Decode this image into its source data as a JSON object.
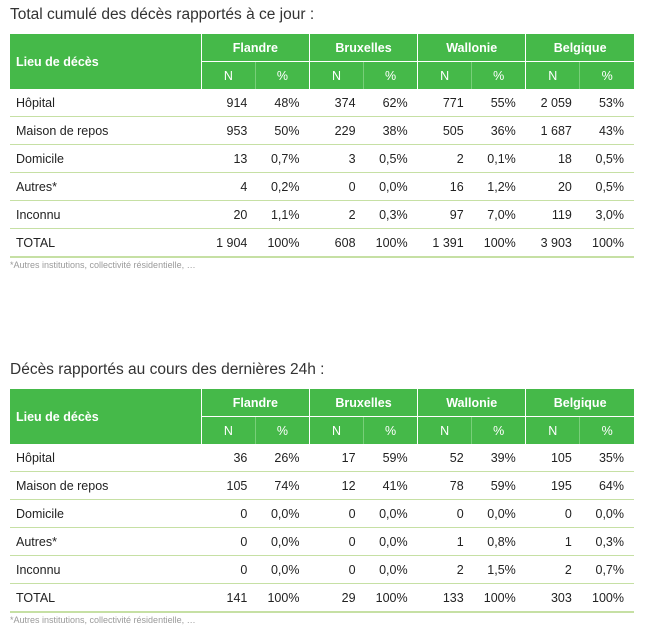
{
  "tables": [
    {
      "title": "Total cumulé des décès rapportés à ce jour :",
      "label_header": "Lieu de décès",
      "regions": [
        "Flandre",
        "Bruxelles",
        "Wallonie",
        "Belgique"
      ],
      "sub_headers": [
        "N",
        "%"
      ],
      "rows": [
        {
          "label": "Hôpital",
          "cells": [
            "914",
            "48%",
            "374",
            "62%",
            "771",
            "55%",
            "2 059",
            "53%"
          ]
        },
        {
          "label": "Maison de repos",
          "cells": [
            "953",
            "50%",
            "229",
            "38%",
            "505",
            "36%",
            "1 687",
            "43%"
          ]
        },
        {
          "label": "Domicile",
          "cells": [
            "13",
            "0,7%",
            "3",
            "0,5%",
            "2",
            "0,1%",
            "18",
            "0,5%"
          ]
        },
        {
          "label": "Autres*",
          "cells": [
            "4",
            "0,2%",
            "0",
            "0,0%",
            "16",
            "1,2%",
            "20",
            "0,5%"
          ]
        },
        {
          "label": "Inconnu",
          "cells": [
            "20",
            "1,1%",
            "2",
            "0,3%",
            "97",
            "7,0%",
            "119",
            "3,0%"
          ]
        },
        {
          "label": "TOTAL",
          "cells": [
            "1 904",
            "100%",
            "608",
            "100%",
            "1 391",
            "100%",
            "3 903",
            "100%"
          ]
        }
      ],
      "footnote": "*Autres institutions, collectivité résidentielle, …"
    },
    {
      "title": "Décès rapportés au cours des dernières 24h :",
      "label_header": "Lieu de décès",
      "regions": [
        "Flandre",
        "Bruxelles",
        "Wallonie",
        "Belgique"
      ],
      "sub_headers": [
        "N",
        "%"
      ],
      "rows": [
        {
          "label": "Hôpital",
          "cells": [
            "36",
            "26%",
            "17",
            "59%",
            "52",
            "39%",
            "105",
            "35%"
          ]
        },
        {
          "label": "Maison de repos",
          "cells": [
            "105",
            "74%",
            "12",
            "41%",
            "78",
            "59%",
            "195",
            "64%"
          ]
        },
        {
          "label": "Domicile",
          "cells": [
            "0",
            "0,0%",
            "0",
            "0,0%",
            "0",
            "0,0%",
            "0",
            "0,0%"
          ]
        },
        {
          "label": "Autres*",
          "cells": [
            "0",
            "0,0%",
            "0",
            "0,0%",
            "1",
            "0,8%",
            "1",
            "0,3%"
          ]
        },
        {
          "label": "Inconnu",
          "cells": [
            "0",
            "0,0%",
            "0",
            "0,0%",
            "2",
            "1,5%",
            "2",
            "0,7%"
          ]
        },
        {
          "label": "TOTAL",
          "cells": [
            "141",
            "100%",
            "29",
            "100%",
            "133",
            "100%",
            "303",
            "100%"
          ]
        }
      ],
      "footnote": "*Autres institutions, collectivité résidentielle, …"
    }
  ],
  "colors": {
    "header_green": "#45b949",
    "row_divider": "#c6e0a4",
    "footnote_gray": "#9a9a9a"
  }
}
